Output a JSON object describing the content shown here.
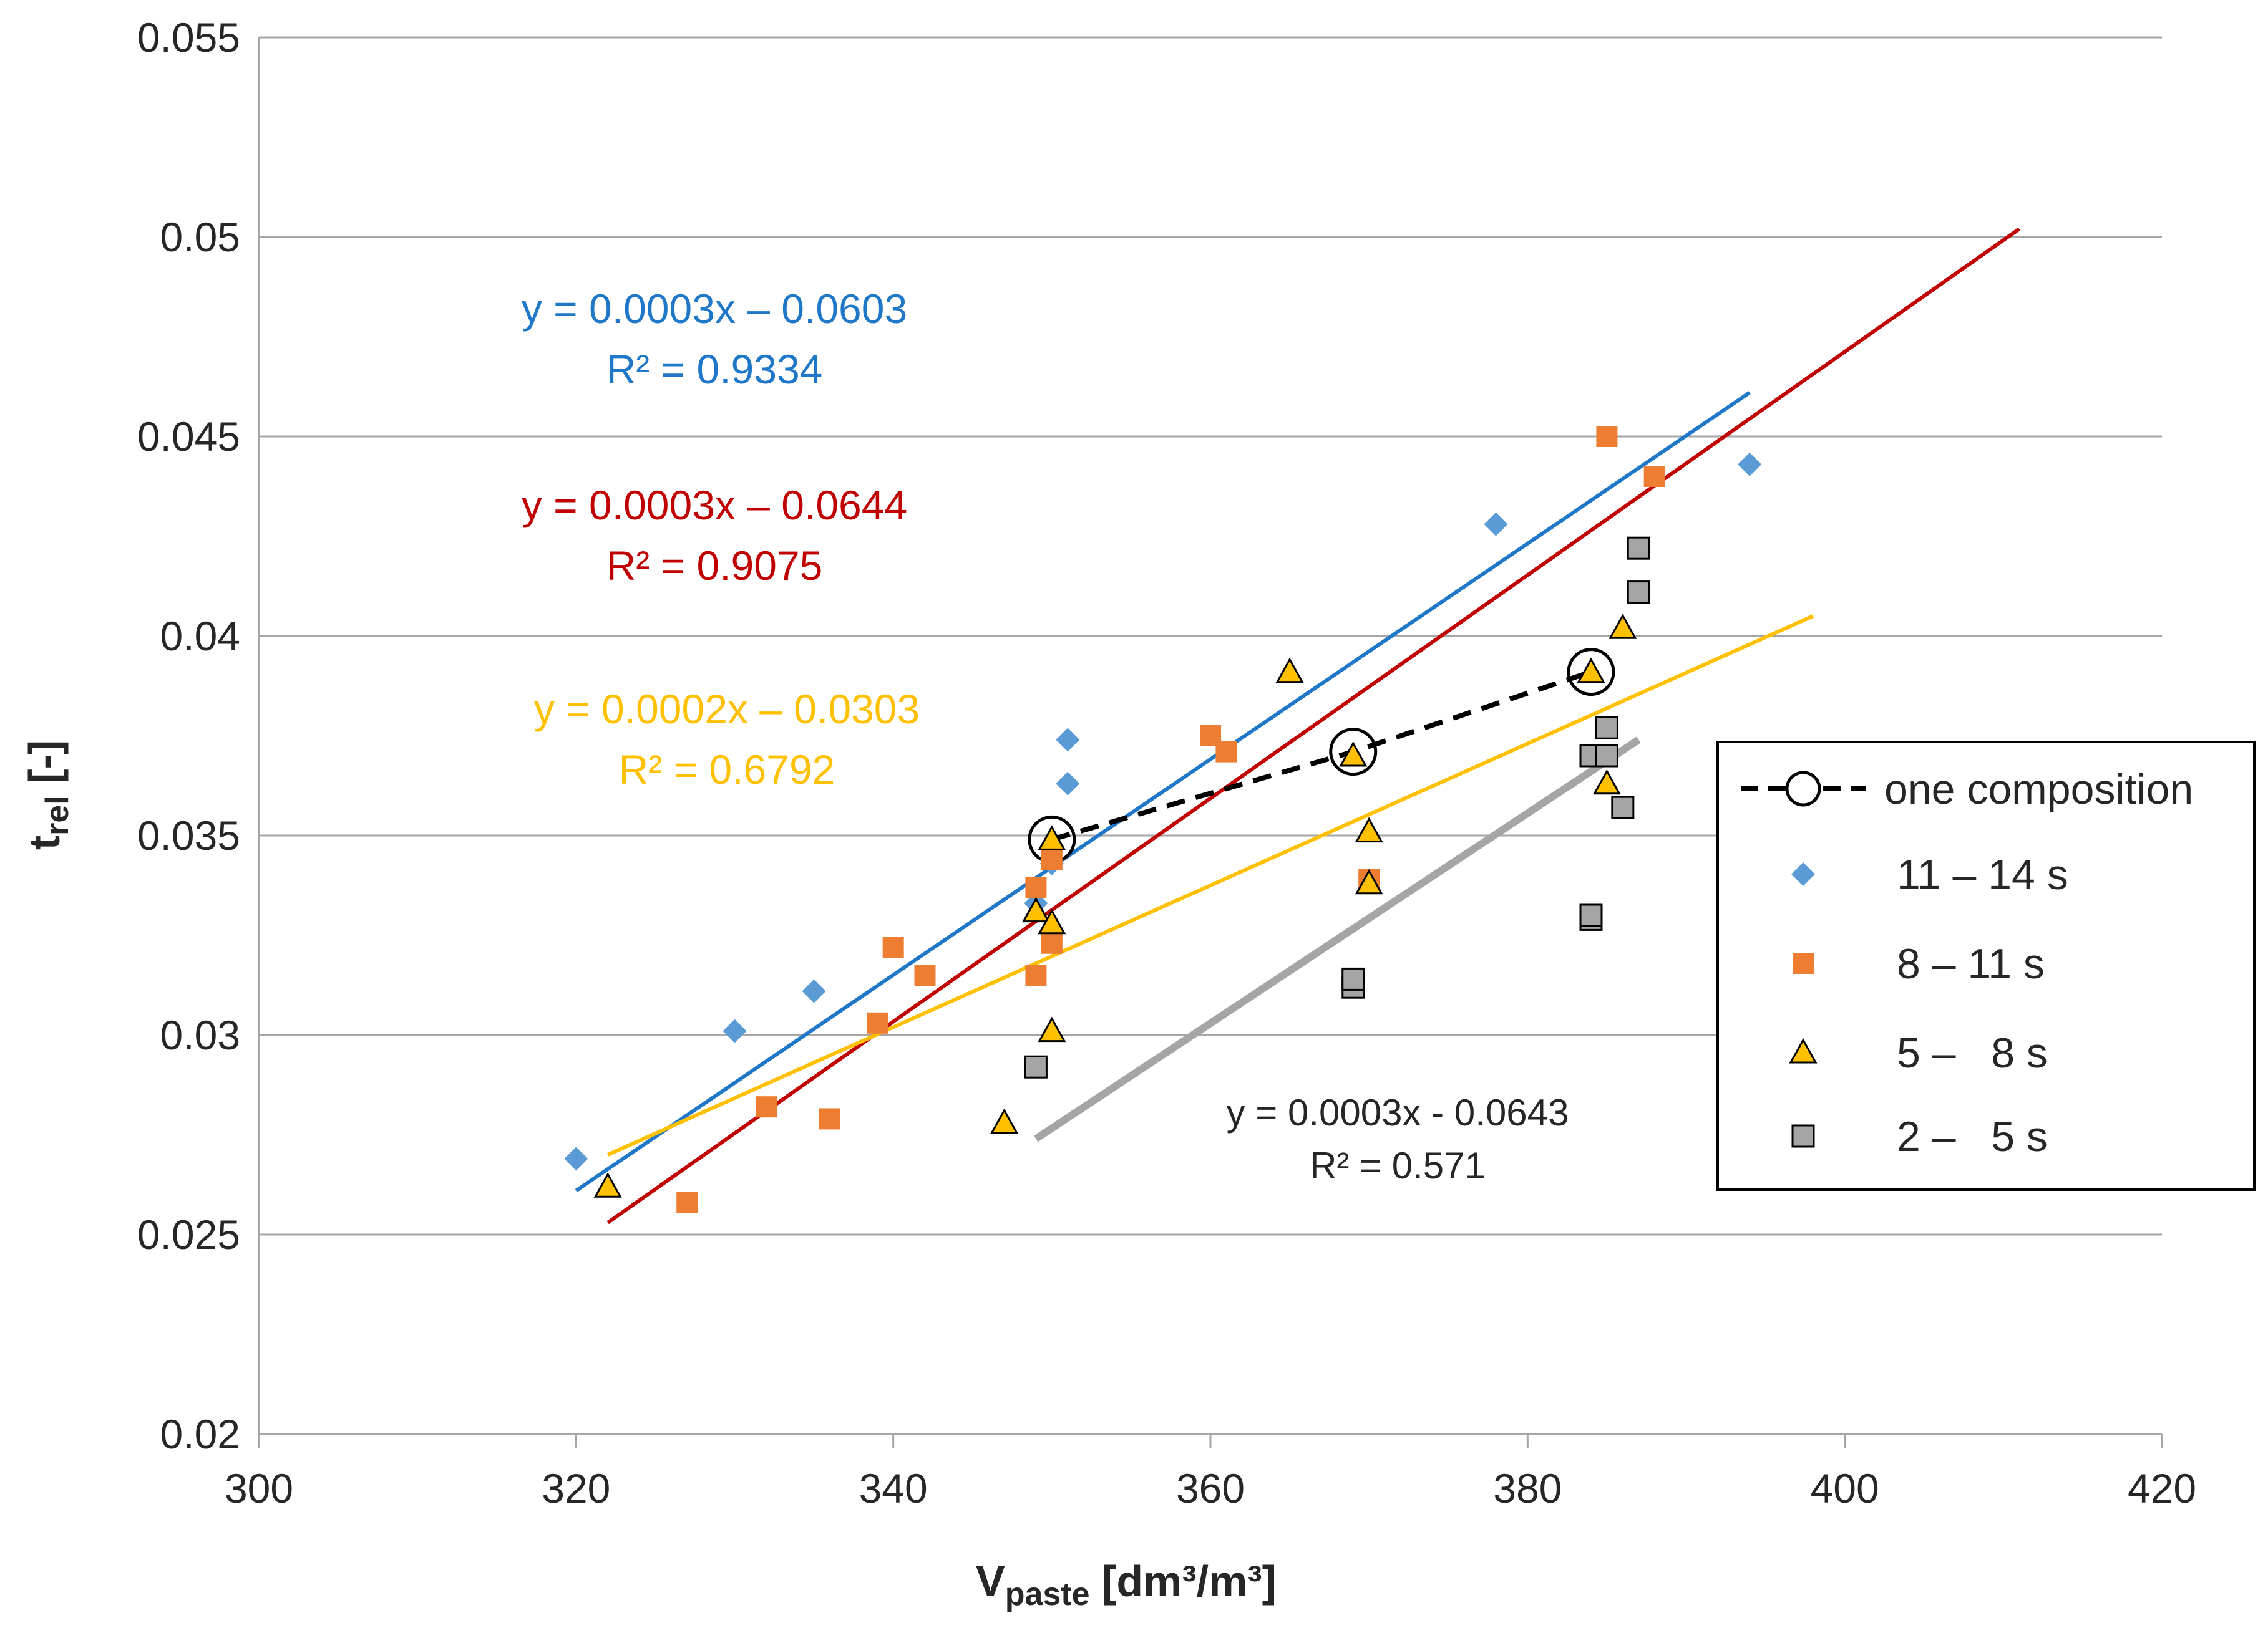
{
  "chart_data": {
    "type": "scatter",
    "title": "",
    "xlabel": {
      "main": "V",
      "sub": "paste",
      "unit": " [dm³/m³]"
    },
    "ylabel": {
      "main": "t",
      "sub": "rel",
      "unit": " [-]"
    },
    "xlim": [
      300,
      420
    ],
    "ylim": [
      0.02,
      0.055
    ],
    "x_ticks": [
      300,
      320,
      340,
      360,
      380,
      400,
      420
    ],
    "x_tick_labels": [
      "300",
      "320",
      "340",
      "360",
      "380",
      "400",
      "420"
    ],
    "y_ticks": [
      0.02,
      0.025,
      0.03,
      0.035,
      0.04,
      0.045,
      0.05,
      0.055
    ],
    "y_tick_labels": [
      "0.02",
      "0.025",
      "0.03",
      "0.035",
      "0.04",
      "0.045",
      "0.05",
      "0.055"
    ],
    "grid": "horizontal",
    "legend_position": "right",
    "series": [
      {
        "name": "11 – 14 s",
        "marker": "diamond",
        "color": "#5B9BD5",
        "points": [
          [
            320,
            0.0269
          ],
          [
            330,
            0.0301
          ],
          [
            335,
            0.0311
          ],
          [
            349,
            0.0333
          ],
          [
            350,
            0.0343
          ],
          [
            351,
            0.0363
          ],
          [
            351,
            0.0374
          ],
          [
            378,
            0.0428
          ],
          [
            394,
            0.0443
          ]
        ]
      },
      {
        "name": "8 – 11 s",
        "marker": "square",
        "color": "#ED7D31",
        "points": [
          [
            327,
            0.0258
          ],
          [
            332,
            0.0282
          ],
          [
            336,
            0.0279
          ],
          [
            339,
            0.0303
          ],
          [
            340,
            0.0322
          ],
          [
            342,
            0.0315
          ],
          [
            349,
            0.0315
          ],
          [
            349,
            0.0337
          ],
          [
            350,
            0.0323
          ],
          [
            350,
            0.0344
          ],
          [
            360,
            0.0375
          ],
          [
            361,
            0.0371
          ],
          [
            370,
            0.0339
          ],
          [
            385,
            0.045
          ],
          [
            388,
            0.044
          ]
        ]
      },
      {
        "name": "5 –   8 s",
        "marker": "triangle",
        "color": "#FFC000",
        "points": [
          [
            322,
            0.0262
          ],
          [
            347,
            0.0278
          ],
          [
            349,
            0.0331
          ],
          [
            350,
            0.0301
          ],
          [
            350,
            0.0328
          ],
          [
            350,
            0.0349
          ],
          [
            365,
            0.0391
          ],
          [
            369,
            0.037
          ],
          [
            370,
            0.0338
          ],
          [
            370,
            0.0351
          ],
          [
            384,
            0.0391
          ],
          [
            385,
            0.0363
          ],
          [
            386,
            0.0402
          ]
        ]
      },
      {
        "name": "2 –   5 s",
        "marker": "square",
        "color": "#A5A5A5",
        "points": [
          [
            349,
            0.0292
          ],
          [
            369,
            0.0312
          ],
          [
            369,
            0.0314
          ],
          [
            384,
            0.0329
          ],
          [
            384,
            0.033
          ],
          [
            384,
            0.037
          ],
          [
            385,
            0.037
          ],
          [
            385,
            0.0377
          ],
          [
            386,
            0.0357
          ],
          [
            387,
            0.0411
          ],
          [
            387,
            0.0422
          ]
        ]
      }
    ],
    "composition_line": {
      "name": "one composition",
      "color": "#000000",
      "points": [
        [
          350,
          0.0349
        ],
        [
          369,
          0.0371
        ],
        [
          384,
          0.0391
        ]
      ]
    },
    "trendlines": [
      {
        "series": "11 – 14 s",
        "color": "#1F77C8",
        "x_range": [
          320,
          394
        ],
        "y_range": [
          0.0261,
          0.0461
        ],
        "equation": "y = 0.0003x – 0.0603",
        "r2": "R² = 0.9334"
      },
      {
        "series": "8 – 11 s",
        "color": "#C00000",
        "x_range": [
          322,
          411
        ],
        "y_range": [
          0.0253,
          0.0502
        ],
        "equation": "y = 0.0003x – 0.0644",
        "r2": "R² = 0.9075"
      },
      {
        "series": "5 –   8 s",
        "color": "#FFC000",
        "x_range": [
          322,
          398
        ],
        "y_range": [
          0.027,
          0.0405
        ],
        "equation": "y = 0.0002x – 0.0303",
        "r2": "R² = 0.6792"
      },
      {
        "series": "2 –   5 s",
        "color": "#A5A5A5",
        "x_range": [
          349,
          387
        ],
        "y_range": [
          0.0274,
          0.0374
        ],
        "equation": "y = 0.0003x - 0.0643",
        "r2": "R² = 0.571"
      }
    ]
  }
}
